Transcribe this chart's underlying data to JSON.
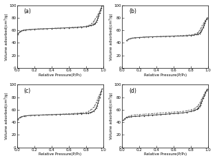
{
  "subplot_labels": [
    "(a)",
    "(b)",
    "(c)",
    "(d)"
  ],
  "xlabel": "Relative Pressure(P/P₀)",
  "ylabel": "Volume adsorbed(cm³/g)",
  "xlim": [
    0.0,
    1.0
  ],
  "ylim": [
    0,
    100
  ],
  "yticks": [
    0,
    20,
    40,
    60,
    80,
    100
  ],
  "xticks": [
    0.0,
    0.2,
    0.4,
    0.6,
    0.8,
    1.0
  ],
  "line_color_ads": "#222222",
  "line_color_des": "#666666",
  "bg_color": "#ffffff",
  "adsorption_curves": {
    "a": {
      "ads_x": [
        0.01,
        0.03,
        0.05,
        0.07,
        0.1,
        0.15,
        0.2,
        0.25,
        0.3,
        0.35,
        0.4,
        0.45,
        0.5,
        0.55,
        0.6,
        0.65,
        0.7,
        0.75,
        0.8,
        0.83,
        0.86,
        0.88,
        0.9,
        0.91,
        0.92,
        0.93,
        0.94,
        0.95,
        0.96,
        0.97,
        0.98,
        0.99
      ],
      "ads_y": [
        54.0,
        57.5,
        59.0,
        60.0,
        60.5,
        61.0,
        61.5,
        62.0,
        62.2,
        62.5,
        62.8,
        63.0,
        63.3,
        63.6,
        63.9,
        64.2,
        64.5,
        65.0,
        65.8,
        66.5,
        67.5,
        68.5,
        70.0,
        71.5,
        73.5,
        76.0,
        79.5,
        83.5,
        87.5,
        91.5,
        95.5,
        99.5
      ],
      "des_x": [
        0.99,
        0.98,
        0.97,
        0.96,
        0.95,
        0.94,
        0.93,
        0.92,
        0.91,
        0.9,
        0.89,
        0.88,
        0.87,
        0.85,
        0.83,
        0.8,
        0.75,
        0.7,
        0.65,
        0.6,
        0.55,
        0.5,
        0.45,
        0.4,
        0.35,
        0.3,
        0.25,
        0.2,
        0.15,
        0.1,
        0.05,
        0.01
      ],
      "des_y": [
        99.5,
        97.0,
        94.0,
        91.0,
        88.0,
        85.5,
        83.0,
        80.5,
        78.5,
        76.5,
        74.5,
        72.5,
        71.0,
        69.0,
        67.5,
        66.5,
        65.8,
        65.2,
        64.8,
        64.4,
        64.0,
        63.7,
        63.4,
        63.1,
        62.8,
        62.5,
        62.2,
        62.0,
        61.5,
        61.0,
        59.5,
        54.0
      ]
    },
    "b": {
      "ads_x": [
        0.05,
        0.07,
        0.09,
        0.12,
        0.15,
        0.2,
        0.25,
        0.3,
        0.35,
        0.4,
        0.45,
        0.5,
        0.55,
        0.6,
        0.65,
        0.7,
        0.75,
        0.8,
        0.83,
        0.86,
        0.88,
        0.9,
        0.91,
        0.92,
        0.93,
        0.94,
        0.95,
        0.96,
        0.97,
        0.98,
        0.99
      ],
      "ads_y": [
        43.5,
        45.5,
        46.5,
        47.5,
        48.0,
        48.5,
        49.0,
        49.3,
        49.6,
        49.8,
        50.0,
        50.2,
        50.4,
        50.6,
        50.8,
        51.0,
        51.3,
        51.8,
        52.3,
        53.0,
        53.8,
        55.0,
        56.5,
        58.5,
        61.0,
        64.0,
        67.5,
        71.0,
        74.5,
        77.5,
        80.0
      ],
      "des_x": [
        0.99,
        0.98,
        0.97,
        0.96,
        0.95,
        0.94,
        0.93,
        0.92,
        0.91,
        0.9,
        0.89,
        0.88,
        0.87,
        0.85,
        0.83,
        0.8,
        0.75,
        0.7,
        0.65,
        0.6,
        0.55,
        0.5,
        0.45,
        0.4,
        0.35,
        0.3,
        0.25,
        0.2,
        0.15,
        0.12,
        0.09,
        0.07,
        0.05
      ],
      "des_y": [
        80.0,
        78.5,
        76.5,
        74.5,
        72.5,
        70.0,
        67.5,
        65.0,
        62.5,
        60.0,
        58.0,
        56.5,
        55.5,
        54.5,
        53.5,
        52.8,
        52.2,
        51.7,
        51.3,
        51.0,
        50.7,
        50.4,
        50.2,
        50.0,
        49.8,
        49.5,
        49.2,
        48.8,
        48.3,
        47.5,
        46.5,
        45.5,
        43.5
      ]
    },
    "c": {
      "ads_x": [
        0.01,
        0.03,
        0.05,
        0.08,
        0.1,
        0.15,
        0.2,
        0.25,
        0.3,
        0.35,
        0.4,
        0.45,
        0.5,
        0.55,
        0.6,
        0.65,
        0.7,
        0.75,
        0.8,
        0.83,
        0.85,
        0.87,
        0.89,
        0.91,
        0.92,
        0.93,
        0.94,
        0.95,
        0.96,
        0.97,
        0.98,
        0.99
      ],
      "ads_y": [
        45.0,
        47.5,
        49.0,
        50.0,
        50.5,
        51.0,
        51.3,
        51.6,
        51.8,
        52.0,
        52.2,
        52.4,
        52.6,
        52.8,
        53.0,
        53.2,
        53.5,
        53.8,
        54.2,
        54.8,
        55.5,
        56.5,
        58.0,
        60.5,
        63.0,
        66.5,
        70.5,
        75.0,
        80.0,
        85.0,
        89.5,
        93.5
      ],
      "des_x": [
        0.99,
        0.98,
        0.97,
        0.96,
        0.95,
        0.94,
        0.93,
        0.92,
        0.91,
        0.9,
        0.89,
        0.87,
        0.85,
        0.83,
        0.8,
        0.75,
        0.7,
        0.65,
        0.6,
        0.55,
        0.5,
        0.45,
        0.4,
        0.35,
        0.3,
        0.25,
        0.2,
        0.15,
        0.1,
        0.05,
        0.01
      ],
      "des_y": [
        93.5,
        91.0,
        88.0,
        85.0,
        82.0,
        78.5,
        75.0,
        71.5,
        68.5,
        66.0,
        64.0,
        61.5,
        59.5,
        57.5,
        56.0,
        55.2,
        54.6,
        54.2,
        53.8,
        53.4,
        53.1,
        52.8,
        52.5,
        52.2,
        52.0,
        51.7,
        51.4,
        51.0,
        50.5,
        49.0,
        45.0
      ]
    },
    "d": {
      "ads_x": [
        0.01,
        0.03,
        0.05,
        0.08,
        0.1,
        0.15,
        0.2,
        0.25,
        0.3,
        0.35,
        0.4,
        0.45,
        0.5,
        0.55,
        0.6,
        0.65,
        0.7,
        0.75,
        0.8,
        0.83,
        0.85,
        0.87,
        0.88,
        0.89,
        0.9,
        0.91,
        0.92,
        0.93,
        0.94,
        0.95,
        0.96,
        0.97,
        0.98,
        0.99
      ],
      "ads_y": [
        43.0,
        46.0,
        47.5,
        48.5,
        49.0,
        49.5,
        50.0,
        50.5,
        51.0,
        51.5,
        52.0,
        52.5,
        53.0,
        53.5,
        54.0,
        54.5,
        55.0,
        56.0,
        57.5,
        58.5,
        59.5,
        61.0,
        62.0,
        63.5,
        65.5,
        68.0,
        71.0,
        74.5,
        78.0,
        81.5,
        84.5,
        87.5,
        90.5,
        93.0
      ],
      "des_x": [
        0.99,
        0.98,
        0.97,
        0.96,
        0.95,
        0.94,
        0.93,
        0.92,
        0.91,
        0.9,
        0.89,
        0.88,
        0.87,
        0.85,
        0.83,
        0.8,
        0.75,
        0.7,
        0.65,
        0.6,
        0.55,
        0.5,
        0.45,
        0.4,
        0.35,
        0.3,
        0.25,
        0.2,
        0.15,
        0.1,
        0.05,
        0.01
      ],
      "des_y": [
        93.0,
        91.5,
        89.5,
        87.0,
        84.5,
        82.0,
        79.0,
        76.0,
        73.0,
        70.5,
        68.5,
        66.5,
        65.0,
        63.0,
        61.5,
        60.0,
        58.5,
        57.5,
        57.0,
        56.5,
        56.0,
        55.5,
        55.0,
        54.5,
        54.0,
        53.5,
        53.0,
        52.5,
        52.0,
        51.0,
        48.5,
        43.0
      ]
    }
  }
}
